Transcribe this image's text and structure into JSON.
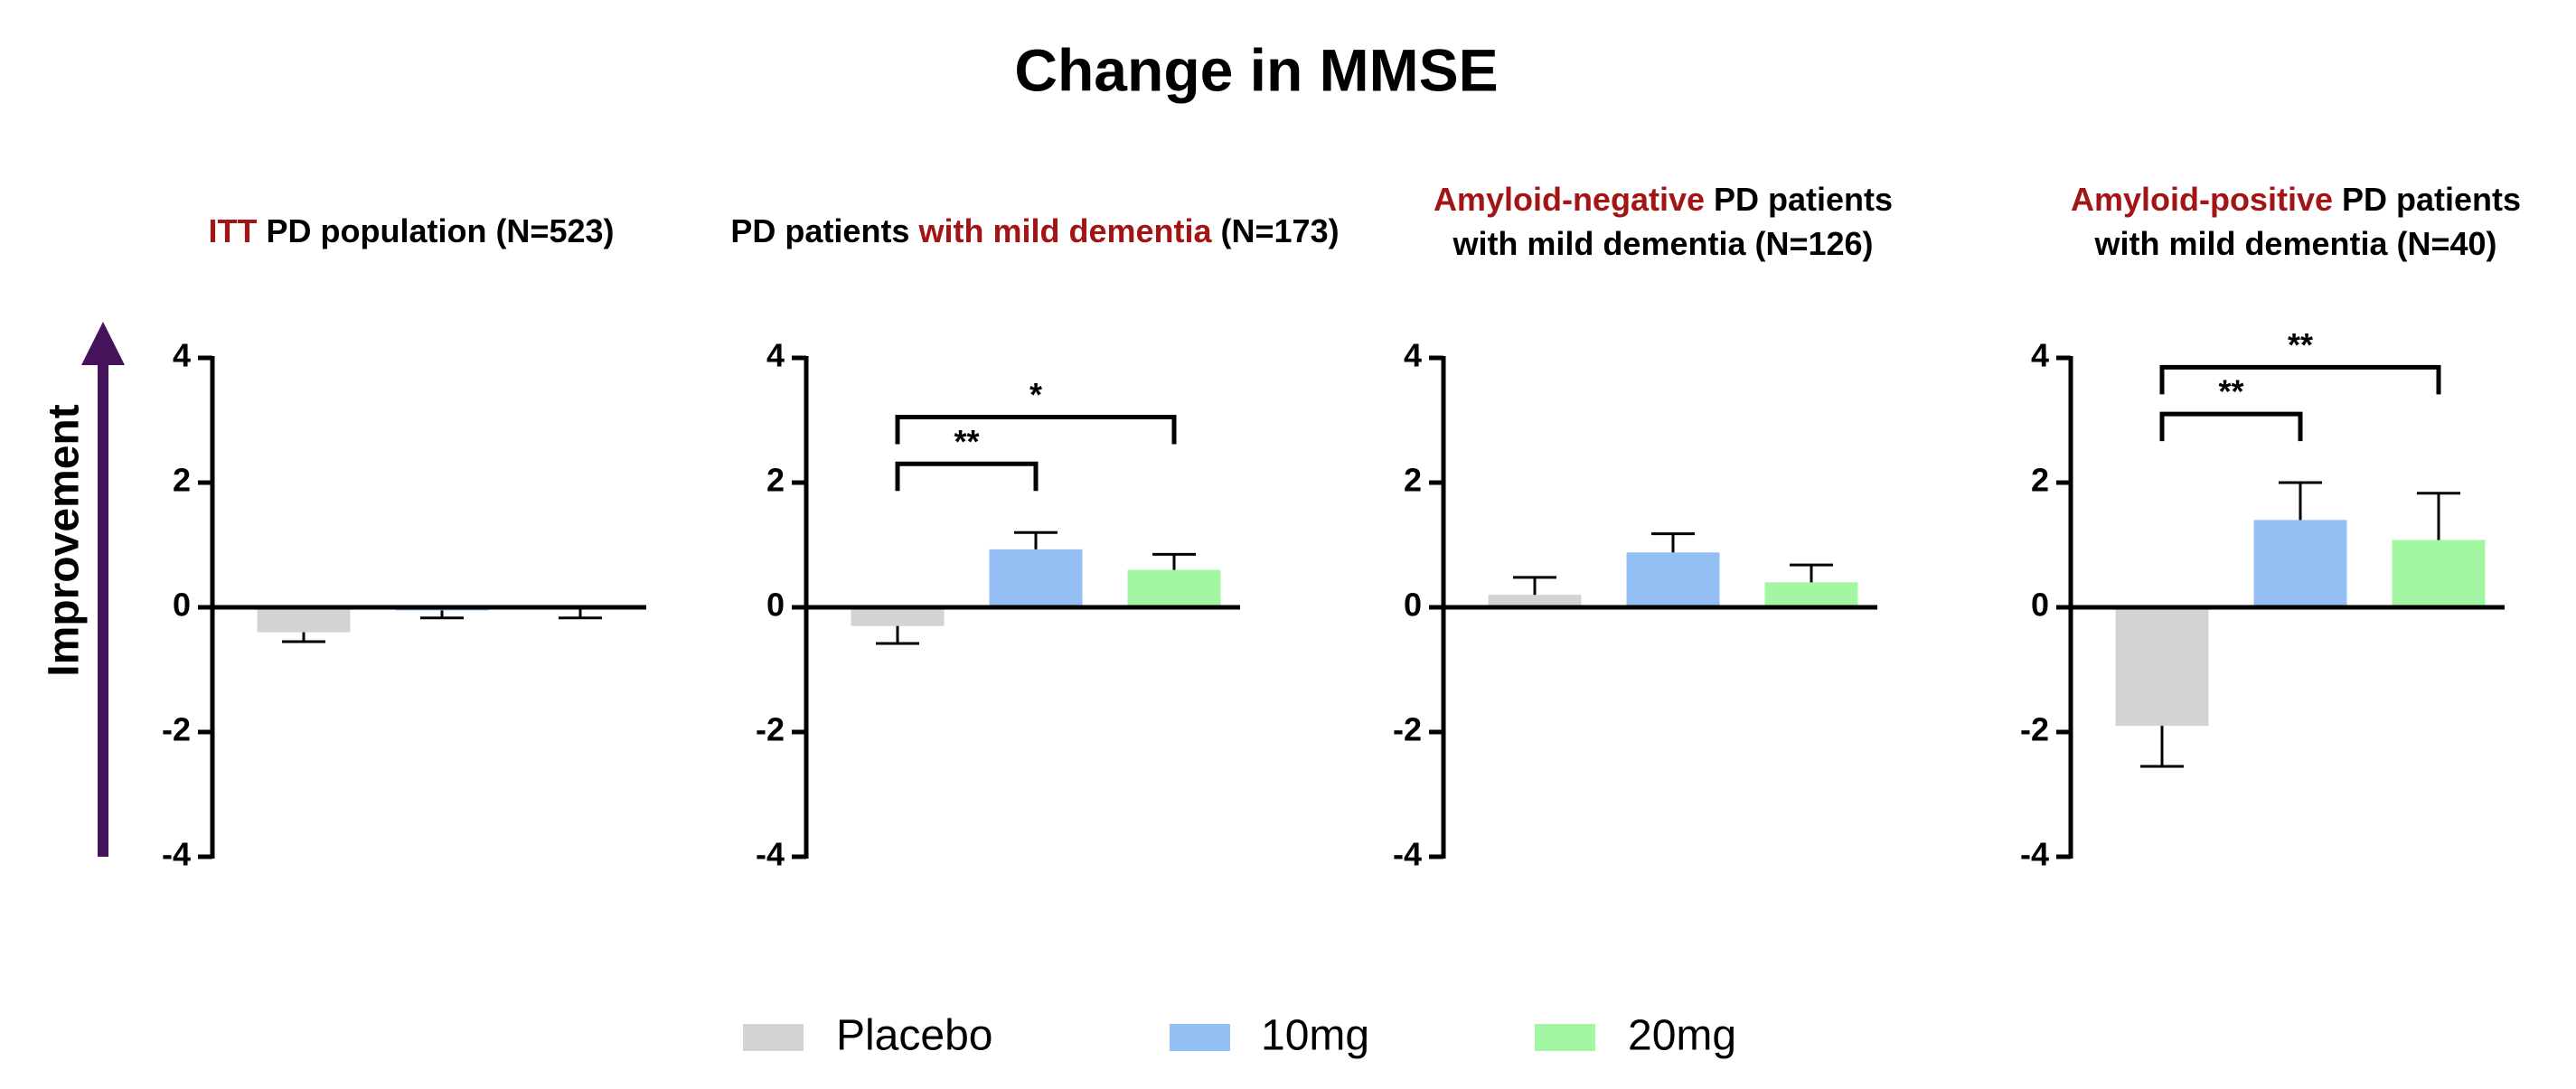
{
  "chart_data": {
    "type": "bar",
    "title": "Change in MMSE",
    "y_label": "Improvement",
    "series": [
      {
        "name": "Placebo",
        "color": "#d3d3d3",
        "values": [
          -0.4,
          -0.3,
          0.2,
          -1.9
        ],
        "errors": [
          0.15,
          0.28,
          0.28,
          0.65
        ]
      },
      {
        "name": "10mg",
        "color": "#94bff5",
        "values": [
          -0.05,
          0.93,
          0.88,
          1.4
        ],
        "errors": [
          0.12,
          0.27,
          0.3,
          0.6
        ]
      },
      {
        "name": "20mg",
        "color": "#a3f7a3",
        "values": [
          -0.02,
          0.6,
          0.4,
          1.08
        ],
        "errors": [
          0.15,
          0.25,
          0.28,
          0.75
        ]
      }
    ],
    "panels": [
      {
        "title_lines": [
          [
            {
              "text": "ITT",
              "color": "#a31515"
            },
            {
              "text": "PD population (N=523)",
              "color": "#000000"
            }
          ]
        ],
        "ylim": [
          -4,
          4
        ],
        "yticks": [
          -4,
          -2,
          0,
          2,
          4
        ],
        "significance": []
      },
      {
        "title_lines": [
          [
            {
              "text": "PD patients",
              "color": "#000000"
            },
            {
              "text": "with mild dementia",
              "color": "#a31515"
            },
            {
              "text": "(N=173)",
              "color": "#000000"
            }
          ]
        ],
        "ylim": [
          -4,
          4
        ],
        "yticks": [
          -4,
          -2,
          0,
          2,
          4
        ],
        "significance": [
          {
            "groups": [
              0,
              1
            ],
            "label": "**"
          },
          {
            "groups": [
              0,
              2
            ],
            "label": "*"
          }
        ]
      },
      {
        "title_lines": [
          [
            {
              "text": "Amyloid-negative",
              "color": "#a31515"
            },
            {
              "text": "PD patients",
              "color": "#000000"
            }
          ],
          [
            {
              "text": "with mild dementia (N=126)",
              "color": "#000000"
            }
          ]
        ],
        "ylim": [
          -4,
          4
        ],
        "yticks": [
          -4,
          -2,
          0,
          2,
          4
        ],
        "significance": []
      },
      {
        "title_lines": [
          [
            {
              "text": "Amyloid-positive",
              "color": "#a31515"
            },
            {
              "text": "PD patients",
              "color": "#000000"
            }
          ],
          [
            {
              "text": "with mild dementia (N=40)",
              "color": "#000000"
            }
          ]
        ],
        "ylim": [
          -4,
          4
        ],
        "yticks": [
          -4,
          -2,
          0,
          2,
          4
        ],
        "significance": [
          {
            "groups": [
              0,
              1
            ],
            "label": "**"
          },
          {
            "groups": [
              0,
              2
            ],
            "label": "**"
          }
        ]
      }
    ]
  }
}
